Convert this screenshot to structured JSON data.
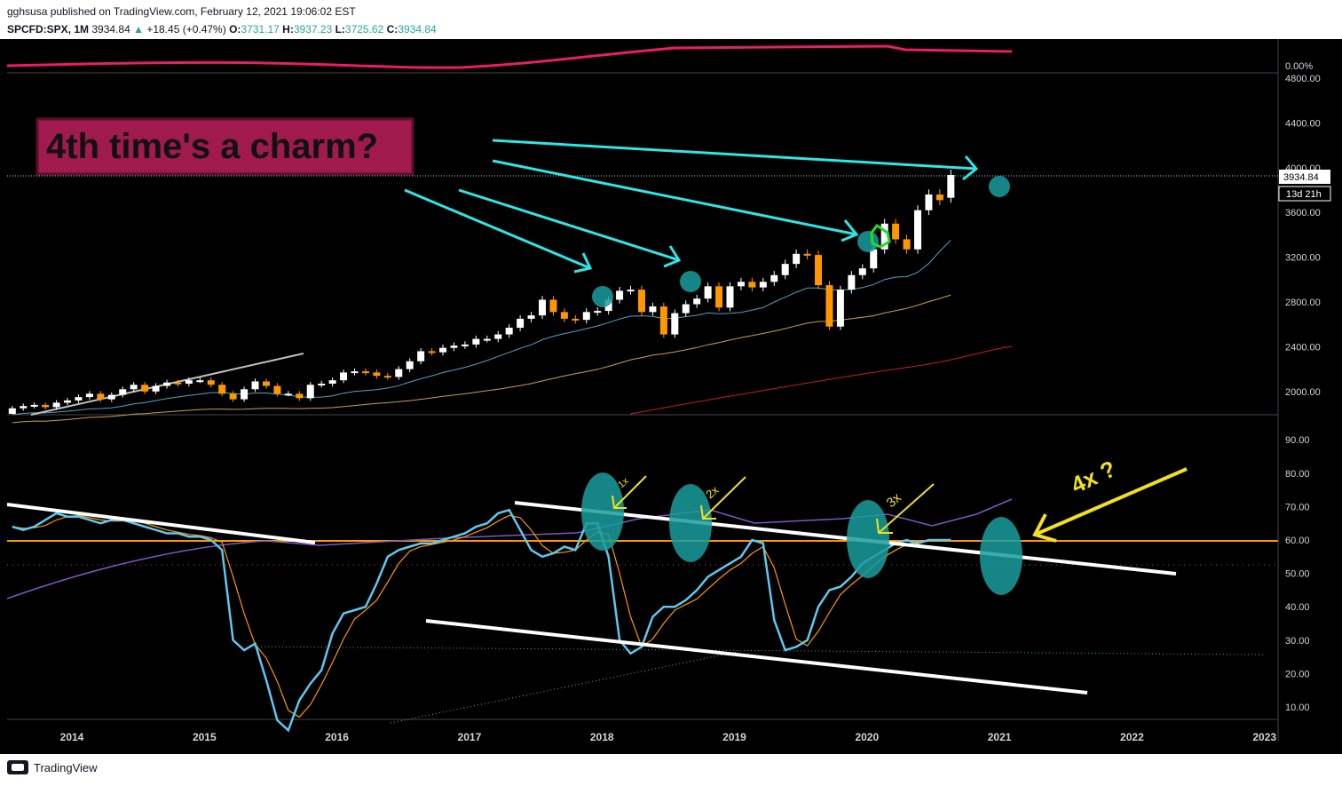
{
  "header": {
    "publisher": "gghsusa published on TradingView.com, February 12, 2021 19:06:02 EST",
    "symbol": "SPCFD:SPX, 1M",
    "last": "3934.84",
    "change": "+18.45 (+0.47%)",
    "o_label": "O:",
    "o": "3731.17",
    "h_label": "H:",
    "h": "3937.23",
    "l_label": "L:",
    "l": "3725.62",
    "c_label": "C:",
    "c": "3934.84"
  },
  "annotation": {
    "box_text": "4th time's a charm?",
    "rsi_labels": [
      "1x",
      "2x",
      "3x",
      "4x ?"
    ]
  },
  "footer": {
    "brand": "TradingView"
  },
  "price_tag": {
    "value": "3934.84",
    "countdown": "13d 21h"
  },
  "colors": {
    "up": "#ffffff",
    "down": "#ff9800",
    "bg": "#000000",
    "rsi": "#5ec8f0",
    "box": "#a01a4e"
  },
  "chart_data": [
    {
      "type": "candlestick",
      "title": "",
      "x_axis_labels": [
        "2014",
        "2015",
        "2016",
        "2017",
        "2018",
        "2019",
        "2020",
        "2021",
        "2022",
        "2023"
      ],
      "y_ticks": [
        "4800.00",
        "4400.00",
        "4000.00",
        "3600.00",
        "3200.00",
        "2800.00",
        "2400.00",
        "2000.00"
      ],
      "ylim": [
        1800,
        4800
      ],
      "series": [
        {
          "name": "",
          "x_start": 2013.55,
          "x_step": 0.08333,
          "close": [
            1850,
            1870,
            1880,
            1860,
            1900,
            1920,
            1950,
            1980,
            1930,
            1970,
            2020,
            2060,
            2000,
            2050,
            2080,
            2070,
            2100,
            2100,
            2060,
            1980,
            1930,
            2020,
            2090,
            2050,
            1980,
            1980,
            1940,
            2060,
            2070,
            2100,
            2170,
            2180,
            2170,
            2140,
            2130,
            2200,
            2270,
            2360,
            2350,
            2390,
            2410,
            2420,
            2470,
            2470,
            2510,
            2570,
            2650,
            2680,
            2820,
            2710,
            2650,
            2640,
            2710,
            2720,
            2820,
            2900,
            2910,
            2710,
            2760,
            2510,
            2700,
            2780,
            2830,
            2940,
            2750,
            2940,
            2980,
            2930,
            2980,
            3040,
            3140,
            3230,
            3220,
            2950,
            2580,
            2910,
            3040,
            3100,
            3270,
            3500,
            3360,
            3270,
            3620,
            3760,
            3710,
            3935
          ],
          "open": [
            1780,
            1850,
            1870,
            1880,
            1860,
            1900,
            1920,
            1950,
            1980,
            1930,
            1970,
            2020,
            2060,
            2000,
            2050,
            2080,
            2070,
            2100,
            2100,
            2060,
            1980,
            1930,
            2020,
            2090,
            2050,
            1980,
            1980,
            1940,
            2060,
            2070,
            2100,
            2170,
            2180,
            2170,
            2140,
            2130,
            2200,
            2270,
            2360,
            2350,
            2390,
            2410,
            2420,
            2470,
            2470,
            2510,
            2570,
            2650,
            2680,
            2820,
            2710,
            2650,
            2640,
            2710,
            2720,
            2820,
            2900,
            2910,
            2710,
            2760,
            2510,
            2700,
            2780,
            2830,
            2940,
            2750,
            2940,
            2980,
            2930,
            2980,
            3040,
            3140,
            3230,
            3220,
            2950,
            2580,
            2910,
            3040,
            3100,
            3270,
            3500,
            3360,
            3270,
            3620,
            3760,
            3731
          ]
        }
      ],
      "moving_averages": [
        "light-blue",
        "tan",
        "red"
      ]
    },
    {
      "type": "line",
      "title": "",
      "y_ticks": [
        "90.00",
        "80.00",
        "70.00",
        "60.00",
        "50.00",
        "40.00",
        "30.00",
        "20.00",
        "10.00"
      ],
      "ylim": [
        5,
        95
      ],
      "series": [
        {
          "name": "",
          "x_start": 2013.55,
          "x_step": 0.08333,
          "values": [
            64,
            63,
            64,
            66,
            68,
            67,
            67,
            66,
            65,
            66,
            66,
            65,
            64,
            63,
            62,
            62,
            61,
            61,
            60,
            57,
            30,
            27,
            29,
            18,
            6,
            3,
            12,
            17,
            21,
            32,
            38,
            39,
            40,
            47,
            55,
            57,
            58,
            59,
            59,
            60,
            61,
            62,
            64,
            65,
            68,
            69,
            63,
            57,
            55,
            56,
            58,
            57,
            65,
            65,
            55,
            30,
            26,
            28,
            37,
            40,
            40,
            42,
            45,
            49,
            51,
            53,
            55,
            60,
            59,
            36,
            27,
            28,
            30,
            40,
            45,
            46,
            49,
            53,
            55,
            57,
            59,
            60,
            59,
            60,
            60,
            60
          ]
        }
      ]
    }
  ]
}
